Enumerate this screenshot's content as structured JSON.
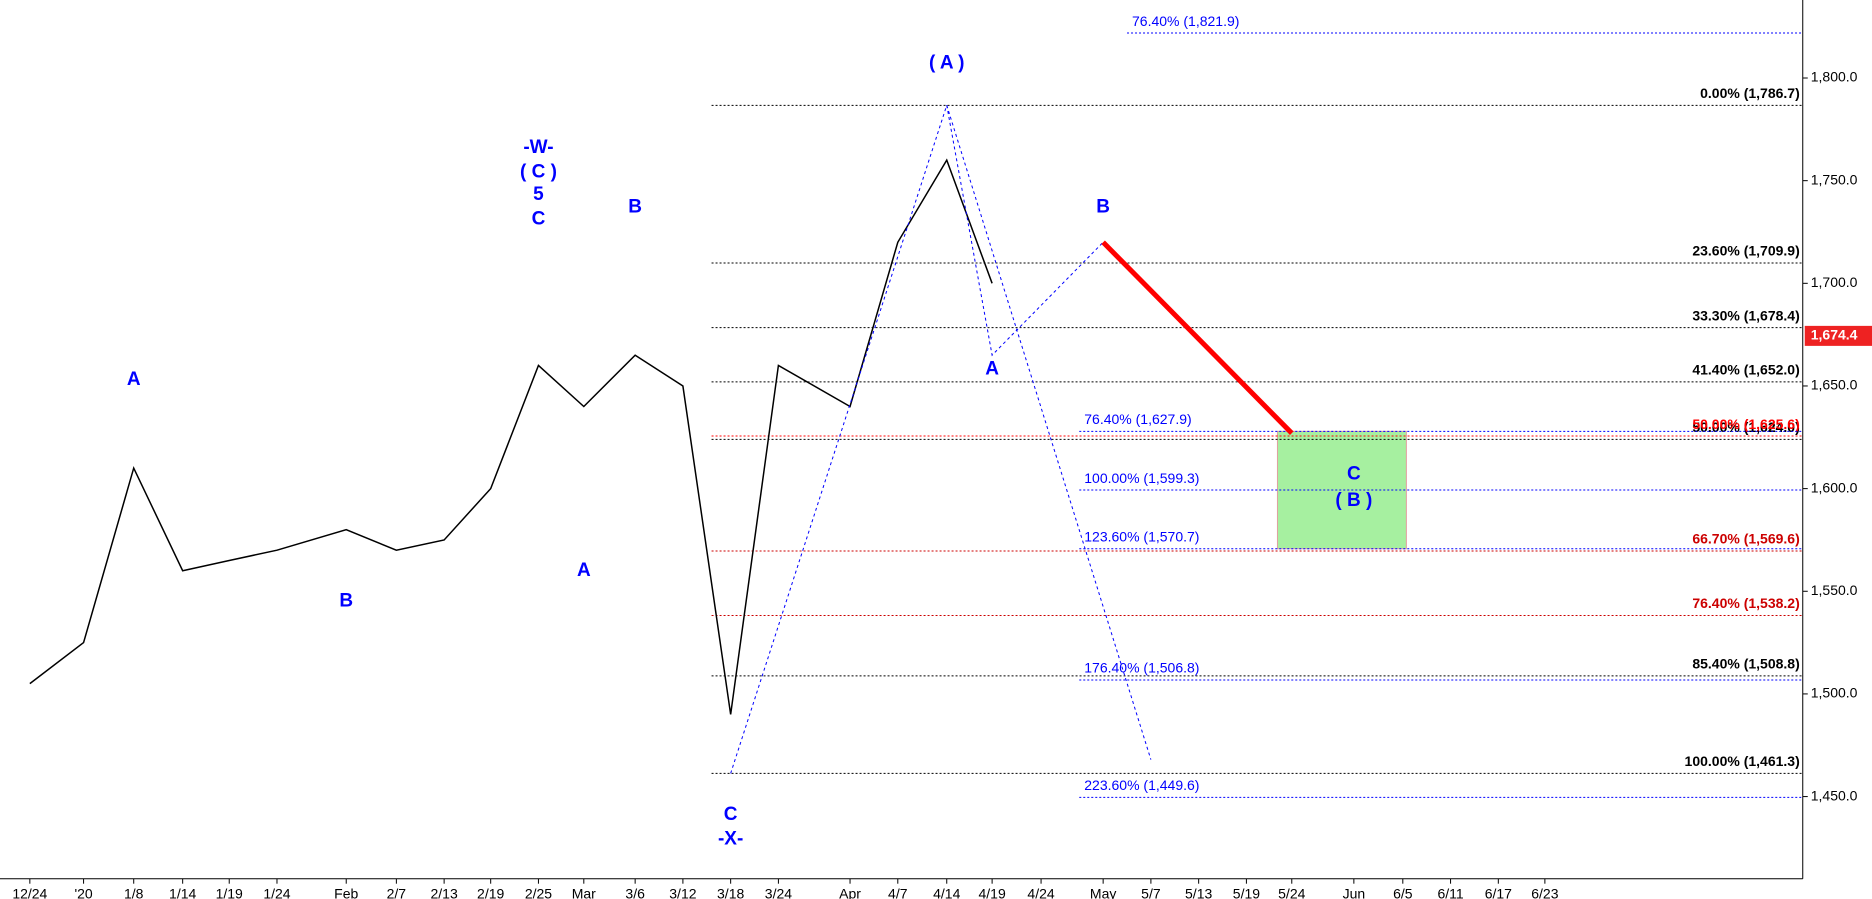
{
  "chart_data": {
    "type": "line",
    "categories": [
      "12/24",
      "'20",
      "1/8",
      "1/14",
      "1/19",
      "1/24",
      "Feb",
      "2/7",
      "2/13",
      "2/19",
      "2/25",
      "Mar",
      "3/6",
      "3/12",
      "3/18",
      "3/24",
      "Apr",
      "4/7",
      "4/14",
      "4/19",
      "4/24",
      "May",
      "5/7",
      "5/13",
      "5/19",
      "5/24",
      "Jun",
      "6/5",
      "6/11",
      "6/17",
      "6/23"
    ],
    "values": [
      1505,
      1525,
      1610,
      1560,
      1565,
      1570,
      1580,
      1570,
      1575,
      1600,
      1660,
      1640,
      1665,
      1650,
      1490,
      1660,
      1640,
      1720,
      1760,
      1700,
      null,
      null,
      null,
      null,
      null,
      null,
      null,
      null,
      null,
      null,
      null
    ],
    "color": "#000000",
    "ylim": [
      1410,
      1838
    ],
    "yticks": [
      {
        "value": 1450,
        "label": "1,450.0"
      },
      {
        "value": 1500,
        "label": "1,500.0"
      },
      {
        "value": 1550,
        "label": "1,550.0"
      },
      {
        "value": 1600,
        "label": "1,600.0"
      },
      {
        "value": 1650,
        "label": "1,650.0"
      },
      {
        "value": 1700,
        "label": "1,700.0"
      },
      {
        "value": 1750,
        "label": "1,750.0"
      },
      {
        "value": 1800,
        "label": "1,800.0"
      }
    ],
    "levels": [
      {
        "label": "0.00% (1,786.7)",
        "value": 1786.7,
        "color": "#000000",
        "start": "3/18"
      },
      {
        "label": "23.60% (1,709.9)",
        "value": 1709.9,
        "color": "#000000",
        "start": "3/18"
      },
      {
        "label": "33.30% (1,678.4)",
        "value": 1678.4,
        "color": "#000000",
        "start": "3/18"
      },
      {
        "label": "41.40% (1,652.0)",
        "value": 1652.0,
        "color": "#000000",
        "start": "3/18"
      },
      {
        "label": "50.00% (1,624.0)",
        "value": 1624.0,
        "color": "#000000",
        "start": "3/18"
      },
      {
        "label": "50.00% (1,625.6)",
        "value": 1625.6,
        "color": "#ff0000",
        "start": "3/18"
      },
      {
        "label": "66.70% (1,569.6)",
        "value": 1569.6,
        "color": "#cc0000",
        "start": "3/18"
      },
      {
        "label": "76.40% (1,538.2)",
        "value": 1538.2,
        "color": "#cc0000",
        "start": "3/18"
      },
      {
        "label": "85.40% (1,508.8)",
        "value": 1508.8,
        "color": "#000000",
        "start": "3/18"
      },
      {
        "label": "100.00% (1,461.3)",
        "value": 1461.3,
        "color": "#000000",
        "start": "3/18"
      },
      {
        "label": "76.40% (1,821.9)",
        "value": 1821.9,
        "color": "#0000ff",
        "start": "5/7"
      },
      {
        "label": "76.40% (1,627.9)",
        "value": 1627.9,
        "color": "#0000ff",
        "start": "May"
      },
      {
        "label": "100.00% (1,599.3)",
        "value": 1599.3,
        "color": "#0000ff",
        "start": "May"
      },
      {
        "label": "123.60% (1,570.7)",
        "value": 1570.7,
        "color": "#0000ff",
        "start": "May"
      },
      {
        "label": "176.40% (1,506.8)",
        "value": 1506.8,
        "color": "#0000ff",
        "start": "May"
      },
      {
        "label": "223.60% (1,449.6)",
        "value": 1449.6,
        "color": "#0000ff",
        "start": "May"
      }
    ],
    "last_price": {
      "label": "1,674.4",
      "value": 1674.4
    },
    "target_zone": {
      "low": 1570.7,
      "high": 1627.9,
      "start": "5/24",
      "end": "6/5"
    },
    "projections": [
      {
        "color": "#0000ff",
        "points": [
          {
            "x": "3/18",
            "y": 1461.3
          },
          {
            "x": "4/14",
            "y": 1786.7
          },
          {
            "x": "4/19",
            "y": 1665
          },
          {
            "x": "May",
            "y": 1720
          }
        ]
      },
      {
        "color": "#0000ff",
        "points": [
          {
            "x": "4/14",
            "y": 1786.7
          },
          {
            "x": "5/7",
            "y": 1468
          }
        ]
      },
      {
        "color": "#ff0000",
        "points": [
          {
            "x": "May",
            "y": 1720
          },
          {
            "x": "5/24",
            "y": 1627
          }
        ]
      }
    ],
    "annotations": [
      {
        "text": "A",
        "x": "1/8",
        "y": 1653
      },
      {
        "text": "B",
        "x": "Feb",
        "y": 1545
      },
      {
        "text": "-W-",
        "x": "2/25",
        "y": 1766
      },
      {
        "text": "( C )",
        "x": "2/25",
        "y": 1754
      },
      {
        "text": "5",
        "x": "2/25",
        "y": 1743
      },
      {
        "text": "C",
        "x": "2/25",
        "y": 1731
      },
      {
        "text": "A",
        "x": "Mar",
        "y": 1560
      },
      {
        "text": "B",
        "x": "3/6",
        "y": 1737
      },
      {
        "text": "C",
        "x": "3/18",
        "y": 1441
      },
      {
        "text": "-X-",
        "x": "3/18",
        "y": 1429
      },
      {
        "text": "( A )",
        "x": "4/14",
        "y": 1807
      },
      {
        "text": "A",
        "x": "4/19",
        "y": 1658
      },
      {
        "text": "B",
        "x": "May",
        "y": 1737
      },
      {
        "text": "C",
        "x": "Jun",
        "y": 1607
      },
      {
        "text": "( B )",
        "x": "Jun",
        "y": 1594
      }
    ]
  }
}
